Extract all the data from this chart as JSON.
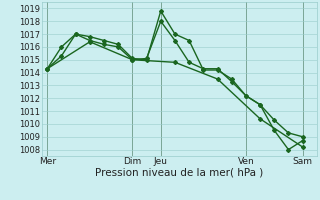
{
  "title": "",
  "xlabel": "Pression niveau de la mer( hPa )",
  "ylabel": "",
  "ylim": [
    1007.5,
    1019.5
  ],
  "yticks": [
    1008,
    1009,
    1010,
    1011,
    1012,
    1013,
    1014,
    1015,
    1016,
    1017,
    1018,
    1019
  ],
  "background_color": "#cceef0",
  "grid_color": "#99cccc",
  "line_color": "#1a6620",
  "vline_color": "#557755",
  "xtick_labels": [
    "Mer",
    "Dim",
    "Jeu",
    "Ven",
    "Sam"
  ],
  "xtick_positions": [
    0,
    3,
    4,
    7,
    9
  ],
  "xlim": [
    -0.2,
    9.5
  ],
  "vlines": [
    0,
    3,
    4,
    7,
    9
  ],
  "series": [
    {
      "x": [
        0,
        0.5,
        1.0,
        1.5,
        2.0,
        2.5,
        3.0,
        3.5,
        4.0,
        4.5,
        5.0,
        5.5,
        6.0,
        6.5,
        7.0,
        7.5,
        8.0,
        8.5,
        9.0
      ],
      "y": [
        1014.3,
        1015.3,
        1017.0,
        1016.8,
        1016.5,
        1016.2,
        1015.1,
        1015.0,
        1018.8,
        1017.0,
        1016.5,
        1014.2,
        1014.2,
        1013.5,
        1012.2,
        1011.5,
        1009.5,
        1008.0,
        1008.7
      ],
      "marker": "D",
      "markersize": 2.0,
      "linewidth": 1.0
    },
    {
      "x": [
        0,
        0.5,
        1.0,
        1.5,
        2.0,
        2.5,
        3.0,
        3.5,
        4.0,
        4.5,
        5.0,
        5.5,
        6.0,
        6.5,
        7.0,
        7.5,
        8.0,
        8.5,
        9.0
      ],
      "y": [
        1014.3,
        1016.0,
        1017.0,
        1016.5,
        1016.2,
        1016.0,
        1015.0,
        1015.1,
        1018.0,
        1016.5,
        1014.8,
        1014.3,
        1014.3,
        1013.3,
        1012.2,
        1011.5,
        1010.3,
        1009.3,
        1009.0
      ],
      "marker": "D",
      "markersize": 2.0,
      "linewidth": 1.0
    },
    {
      "x": [
        0,
        1.5,
        3.0,
        4.5,
        6.0,
        7.5,
        9.0
      ],
      "y": [
        1014.3,
        1016.4,
        1015.0,
        1014.8,
        1013.5,
        1010.4,
        1008.2
      ],
      "marker": "D",
      "markersize": 2.0,
      "linewidth": 1.0
    }
  ]
}
